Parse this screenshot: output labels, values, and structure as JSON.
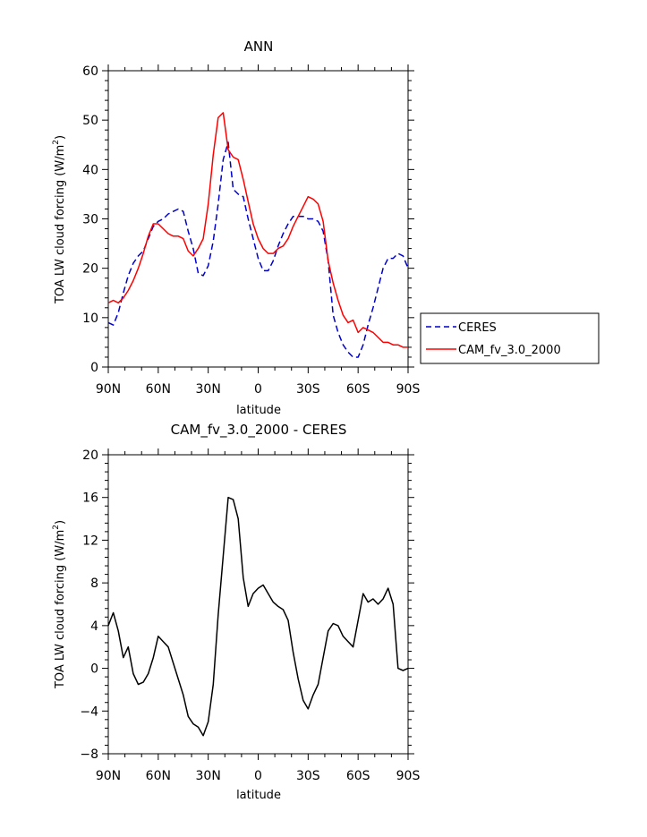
{
  "chart_data": [
    {
      "type": "line",
      "title": "ANN",
      "xlabel": "latitude",
      "ylabel": "TOA LW cloud forcing (W/m",
      "ylabel_sup": "2",
      "ylabel_end": ")",
      "xlim": [
        90,
        -90
      ],
      "ylim": [
        0,
        60
      ],
      "x_ticks": [
        90,
        60,
        30,
        0,
        -30,
        -60,
        -90
      ],
      "x_tick_labels": [
        "90N",
        "60N",
        "30N",
        "0",
        "30S",
        "60S",
        "90S"
      ],
      "y_ticks": [
        0,
        10,
        20,
        30,
        40,
        50,
        60
      ],
      "y_tick_labels": [
        "0",
        "10",
        "20",
        "30",
        "40",
        "50",
        "60"
      ],
      "legend": "outside-right",
      "series": [
        {
          "name": "CERES",
          "color": "#0000cc",
          "dash": "dashed",
          "x": [
            90,
            87,
            84,
            81,
            78,
            75,
            72,
            69,
            66,
            63,
            60,
            57,
            54,
            51,
            48,
            45,
            42,
            39,
            36,
            33,
            30,
            27,
            24,
            21,
            18,
            15,
            12,
            9,
            6,
            3,
            0,
            -3,
            -6,
            -9,
            -12,
            -15,
            -18,
            -21,
            -24,
            -27,
            -30,
            -33,
            -36,
            -39,
            -42,
            -45,
            -48,
            -51,
            -54,
            -57,
            -60,
            -63,
            -66,
            -69,
            -72,
            -75,
            -78,
            -81,
            -84,
            -87,
            -90
          ],
          "values": [
            9,
            8.5,
            11,
            15,
            18.5,
            21,
            22.5,
            23.5,
            26,
            28.5,
            29.5,
            30,
            31,
            31.5,
            32,
            31.5,
            27.5,
            24,
            19,
            18.5,
            20.5,
            25.5,
            33,
            42,
            45.5,
            36,
            35,
            34.5,
            30,
            26,
            22,
            19.5,
            19.5,
            21.5,
            24.5,
            27,
            29,
            30.5,
            30.5,
            30.5,
            30,
            30,
            29.5,
            27.5,
            21.5,
            10.5,
            7,
            4.5,
            3,
            2,
            2,
            4.5,
            8.5,
            12,
            16,
            20,
            22,
            22,
            23,
            22.5,
            20
          ]
        },
        {
          "name": "CAM_fv_3.0_2000",
          "color": "#ff0000",
          "dash": "solid",
          "x": [
            90,
            87,
            84,
            81,
            78,
            75,
            72,
            69,
            66,
            63,
            60,
            57,
            54,
            51,
            48,
            45,
            42,
            39,
            36,
            33,
            30,
            27,
            24,
            21,
            18,
            15,
            12,
            9,
            6,
            3,
            0,
            -3,
            -6,
            -9,
            -12,
            -15,
            -18,
            -21,
            -24,
            -27,
            -30,
            -33,
            -36,
            -39,
            -42,
            -45,
            -48,
            -51,
            -54,
            -57,
            -60,
            -63,
            -66,
            -69,
            -72,
            -75,
            -78,
            -81,
            -84,
            -87,
            -90
          ],
          "values": [
            13,
            13.5,
            13,
            14,
            15.5,
            17.5,
            20,
            23,
            26.5,
            29,
            29,
            28,
            27,
            26.5,
            26.5,
            26,
            23.5,
            22.5,
            24,
            26,
            33,
            43,
            50.5,
            51.5,
            44,
            42.5,
            42,
            38,
            33.5,
            29,
            26,
            24,
            23,
            23,
            24,
            24.5,
            26,
            28.5,
            30.5,
            32.5,
            34.5,
            34,
            33,
            29.5,
            21.5,
            17,
            13.5,
            10.5,
            9,
            9.5,
            7,
            8,
            7.5,
            7,
            6,
            5,
            5,
            4.5,
            4.5,
            4,
            4
          ]
        }
      ]
    },
    {
      "type": "line",
      "title": "CAM_fv_3.0_2000 - CERES",
      "xlabel": "latitude",
      "ylabel": "TOA LW cloud forcing (W/m",
      "ylabel_sup": "2",
      "ylabel_end": ")",
      "xlim": [
        90,
        -90
      ],
      "ylim": [
        -8,
        20
      ],
      "x_ticks": [
        90,
        60,
        30,
        0,
        -30,
        -60,
        -90
      ],
      "x_tick_labels": [
        "90N",
        "60N",
        "30N",
        "0",
        "30S",
        "60S",
        "90S"
      ],
      "y_ticks": [
        -8,
        -4,
        0,
        4,
        8,
        12,
        16,
        20
      ],
      "y_tick_labels": [
        "−8",
        "−4",
        "0",
        "4",
        "8",
        "12",
        "16",
        "20"
      ],
      "series": [
        {
          "color": "#000000",
          "dash": "solid",
          "x": [
            90,
            87,
            84,
            81,
            78,
            75,
            72,
            69,
            66,
            63,
            60,
            57,
            54,
            51,
            48,
            45,
            42,
            39,
            36,
            33,
            30,
            27,
            24,
            21,
            18,
            15,
            12,
            9,
            6,
            3,
            0,
            -3,
            -6,
            -9,
            -12,
            -15,
            -18,
            -21,
            -24,
            -27,
            -30,
            -33,
            -36,
            -39,
            -42,
            -45,
            -48,
            -51,
            -54,
            -57,
            -60,
            -63,
            -66,
            -69,
            -72,
            -75,
            -78,
            -81,
            -84,
            -87,
            -90
          ],
          "values": [
            4,
            5.2,
            3.5,
            1,
            2,
            -0.5,
            -1.5,
            -1.3,
            -0.5,
            1,
            3,
            2.5,
            2,
            0.5,
            -1,
            -2.5,
            -4.5,
            -5.2,
            -5.5,
            -6.3,
            -5,
            -1.5,
            5,
            10.5,
            16,
            15.8,
            14,
            8.5,
            5.8,
            7,
            7.5,
            7.8,
            7,
            6.2,
            5.8,
            5.5,
            4.5,
            1.5,
            -1,
            -3,
            -3.8,
            -2.5,
            -1.5,
            1,
            3.5,
            4.2,
            4,
            3,
            2.5,
            2,
            4.5,
            7,
            6.2,
            6.5,
            6,
            6.5,
            7.5,
            6,
            0,
            -0.2,
            0
          ]
        }
      ]
    }
  ]
}
